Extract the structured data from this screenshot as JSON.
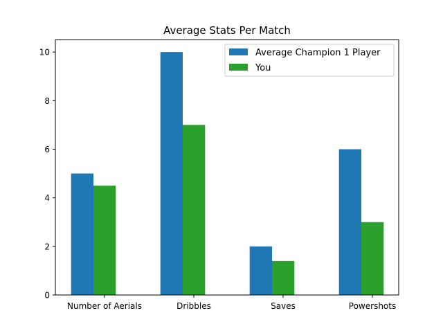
{
  "chart_data": {
    "type": "bar",
    "title": "Average Stats Per Match",
    "xlabel": "",
    "ylabel": "",
    "categories": [
      "Number of Aerials",
      "Dribbles",
      "Saves",
      "Powershots"
    ],
    "series": [
      {
        "name": "Average Champion 1 Player",
        "color": "#1f77b4",
        "values": [
          5,
          10,
          2,
          6
        ]
      },
      {
        "name": "You",
        "color": "#2ca02c",
        "values": [
          4.5,
          7,
          1.4,
          3
        ]
      }
    ],
    "ylim": [
      0,
      10.5
    ],
    "yticks": [
      "0",
      "2",
      "4",
      "6",
      "8",
      "10"
    ],
    "grid": false,
    "legend_position": "top-right"
  }
}
